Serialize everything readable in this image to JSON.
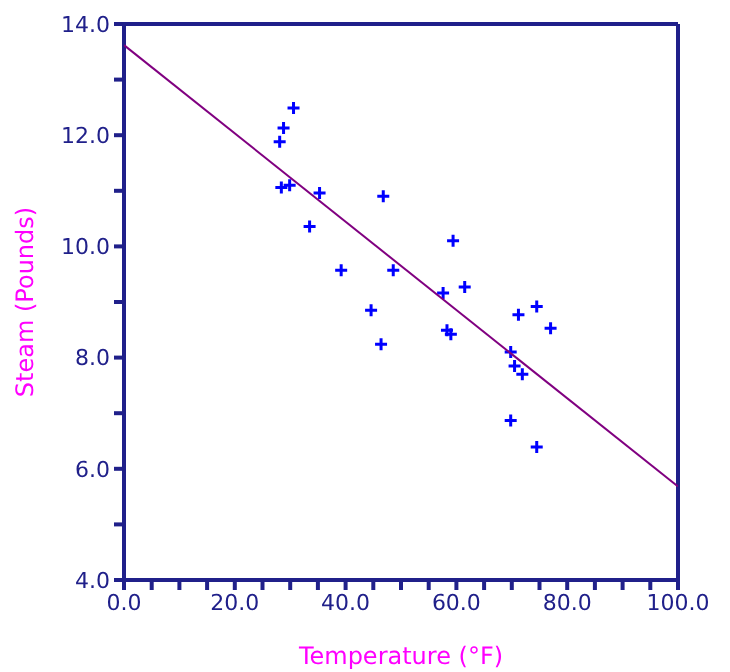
{
  "chart_data": {
    "type": "scatter",
    "xlabel": "Temperature (°F)",
    "ylabel": "Steam (Pounds)",
    "xlim": [
      0,
      100
    ],
    "ylim": [
      4,
      14
    ],
    "xticks": [
      {
        "value": 0,
        "label": "0.0"
      },
      {
        "value": 5,
        "label": null
      },
      {
        "value": 10,
        "label": null
      },
      {
        "value": 15,
        "label": null
      },
      {
        "value": 20,
        "label": "20.0"
      },
      {
        "value": 25,
        "label": null
      },
      {
        "value": 30,
        "label": null
      },
      {
        "value": 35,
        "label": null
      },
      {
        "value": 40,
        "label": "40.0"
      },
      {
        "value": 45,
        "label": null
      },
      {
        "value": 50,
        "label": null
      },
      {
        "value": 55,
        "label": null
      },
      {
        "value": 60,
        "label": "60.0"
      },
      {
        "value": 65,
        "label": null
      },
      {
        "value": 70,
        "label": null
      },
      {
        "value": 75,
        "label": null
      },
      {
        "value": 80,
        "label": "80.0"
      },
      {
        "value": 85,
        "label": null
      },
      {
        "value": 90,
        "label": null
      },
      {
        "value": 95,
        "label": null
      },
      {
        "value": 100,
        "label": "100.0"
      }
    ],
    "yticks": [
      {
        "value": 4,
        "label": "4.0"
      },
      {
        "value": 5,
        "label": null
      },
      {
        "value": 6,
        "label": "6.0"
      },
      {
        "value": 7,
        "label": null
      },
      {
        "value": 8,
        "label": "8.0"
      },
      {
        "value": 9,
        "label": null
      },
      {
        "value": 10,
        "label": "10.0"
      },
      {
        "value": 11,
        "label": null
      },
      {
        "value": 12,
        "label": "12.0"
      },
      {
        "value": 13,
        "label": null
      },
      {
        "value": 14,
        "label": "14.0"
      }
    ],
    "series": [
      {
        "marker": "cross",
        "color": "#0000ff",
        "x": [
          28.1,
          28.8,
          30.6,
          28.4,
          29.9,
          35.3,
          33.5,
          39.2,
          46.8,
          48.6,
          44.6,
          46.4,
          57.6,
          59.4,
          61.5,
          58.3,
          59.0,
          69.8,
          71.2,
          74.5,
          77.0,
          70.5,
          71.9,
          69.8,
          74.5
        ],
        "values": [
          11.88,
          12.13,
          12.49,
          11.06,
          11.1,
          10.96,
          10.36,
          9.57,
          10.9,
          9.57,
          8.85,
          8.24,
          9.16,
          10.1,
          9.27,
          8.49,
          8.42,
          8.1,
          8.77,
          8.92,
          8.53,
          7.85,
          7.7,
          6.87,
          6.39
        ]
      },
      {
        "type": "line",
        "color": "#800080",
        "x": [
          0,
          100
        ],
        "values": [
          13.62,
          5.68
        ]
      }
    ]
  }
}
